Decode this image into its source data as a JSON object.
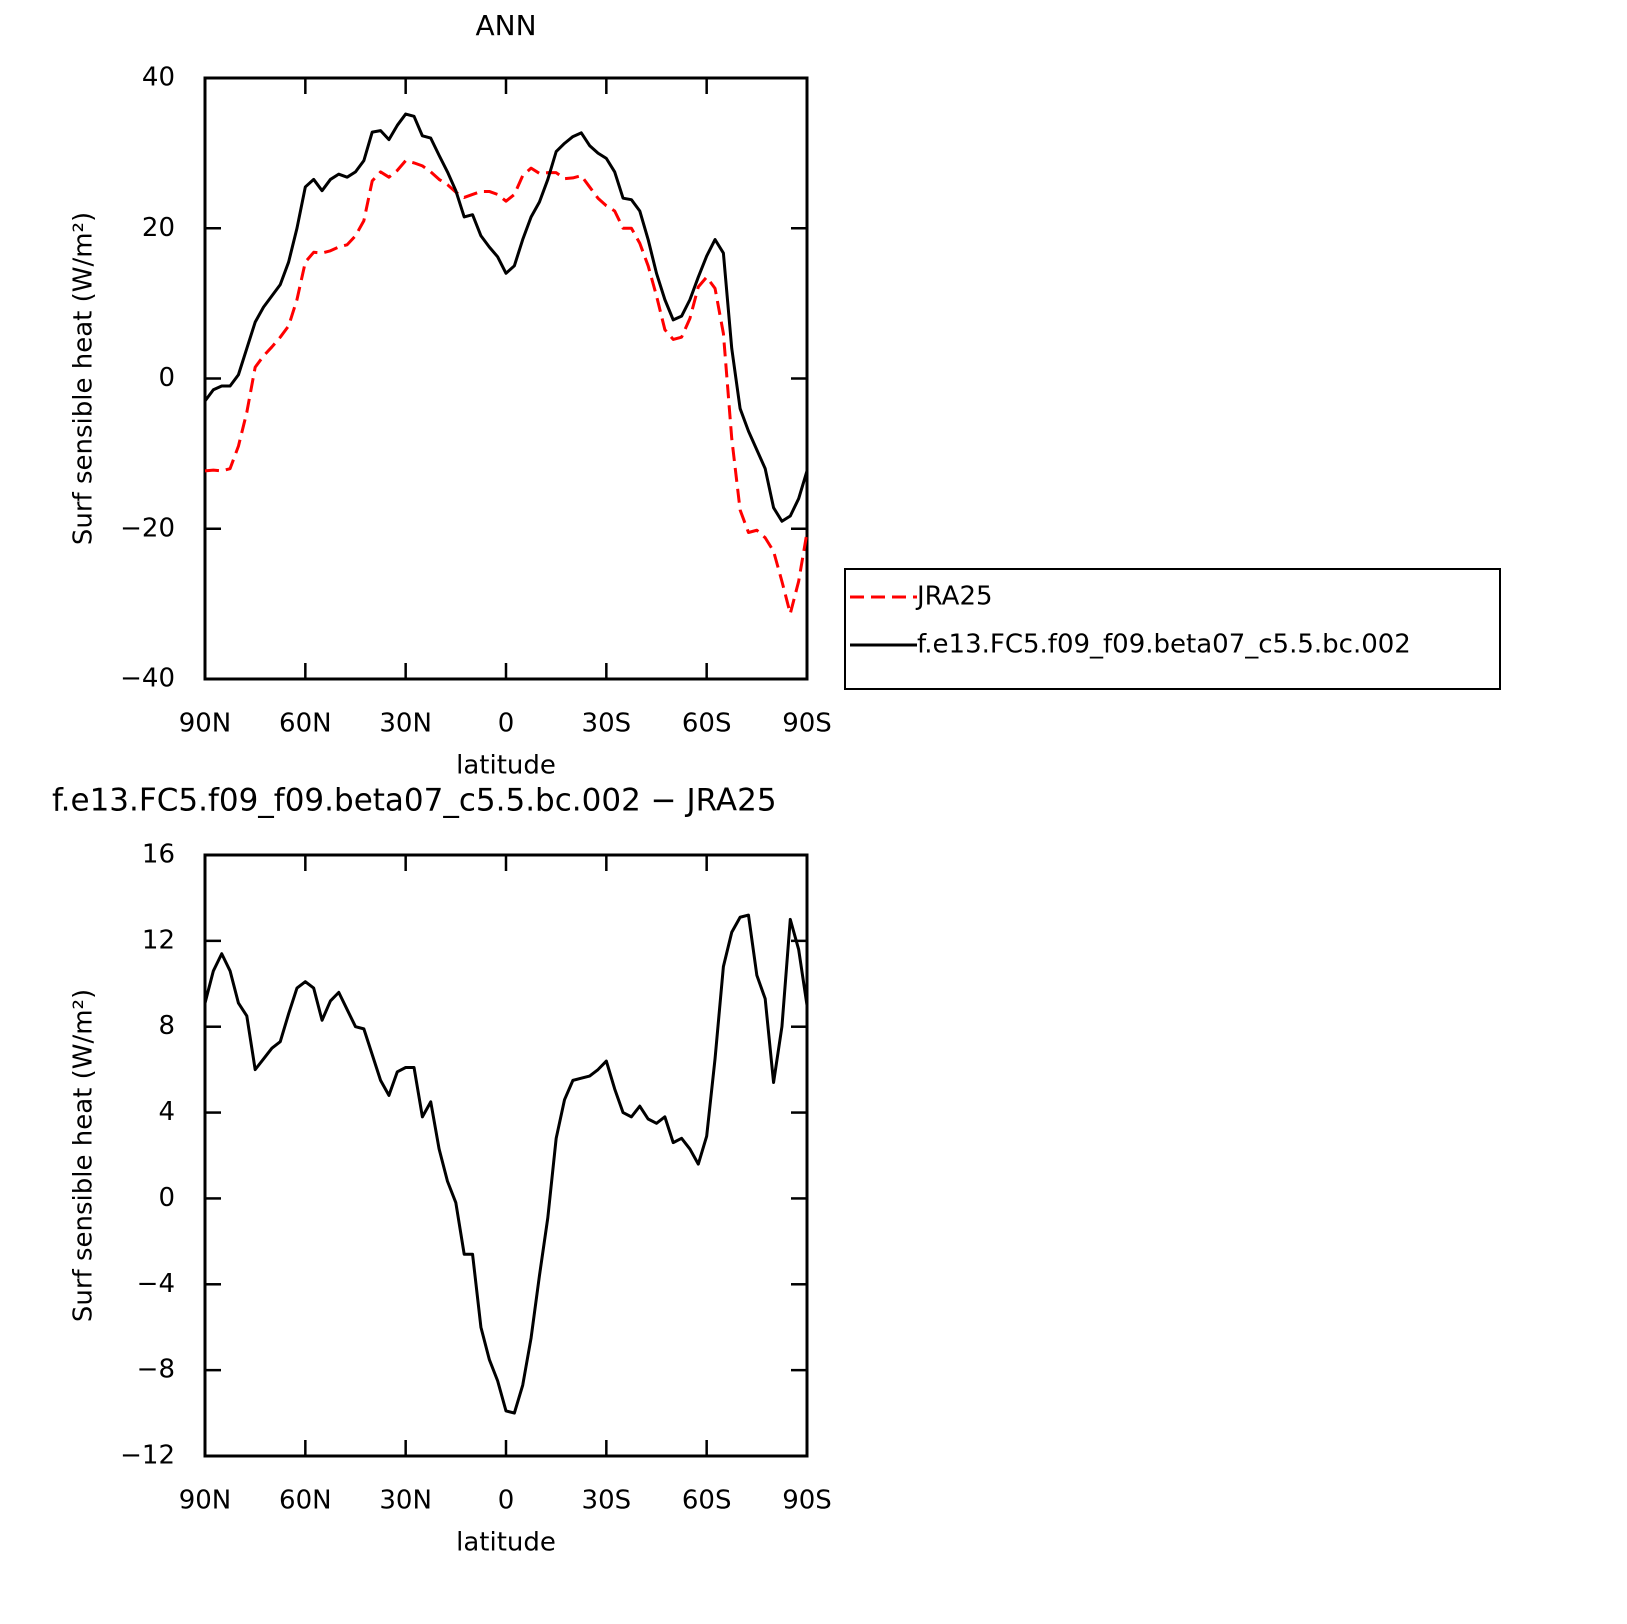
{
  "chart_data": [
    {
      "type": "line",
      "title": "ANN",
      "xlabel": "latitude",
      "ylabel": "Surf sensible heat (W/m²)",
      "x": [
        90,
        87.5,
        85,
        82.5,
        80,
        77.5,
        75,
        72.5,
        70,
        67.5,
        65,
        62.5,
        60,
        57.5,
        55,
        52.5,
        50,
        47.5,
        45,
        42.5,
        40,
        37.5,
        35,
        32.5,
        30,
        27.5,
        25,
        22.5,
        20,
        17.5,
        15,
        12.5,
        10,
        7.5,
        5,
        2.5,
        0,
        -2.5,
        -5,
        -7.5,
        -10,
        -12.5,
        -15,
        -17.5,
        -20,
        -22.5,
        -25,
        -27.5,
        -30,
        -32.5,
        -35,
        -37.5,
        -40,
        -42.5,
        -45,
        -47.5,
        -50,
        -52.5,
        -55,
        -57.5,
        -60,
        -62.5,
        -65,
        -67.5,
        -70,
        -72.5,
        -75,
        -77.5,
        -80,
        -82.5,
        -85,
        -87.5,
        -90
      ],
      "series": [
        {
          "name": "JRA25",
          "color": "#ff0000",
          "style": "dashed",
          "values": [
            -12.3,
            -12.2,
            -12.3,
            -12,
            -9,
            -4.5,
            1.5,
            3,
            4.2,
            5.5,
            7,
            10.5,
            15.5,
            16.8,
            16.7,
            17,
            17.5,
            17.8,
            19,
            21,
            26.3,
            27.5,
            26.8,
            27.7,
            29,
            28.7,
            28.3,
            27.5,
            26.5,
            25.8,
            24.8,
            24.1,
            24.5,
            24.9,
            24.9,
            24.5,
            23.6,
            24.5,
            27,
            28,
            27.3,
            27.4,
            27.4,
            26.6,
            26.7,
            27,
            25.5,
            24,
            23,
            22.3,
            20,
            20,
            18,
            15,
            11,
            6.5,
            5.2,
            5.5,
            8,
            12.2,
            13.5,
            12,
            6,
            -8,
            -17.5,
            -20.5,
            -20.2,
            -21.2,
            -23,
            -27,
            -31.3,
            -27,
            -20.5
          ]
        },
        {
          "name": "f.e13.FC5.f09_f09.beta07_c5.5.bc.002",
          "color": "#000000",
          "style": "solid",
          "values": [
            -3,
            -1.5,
            -1,
            -1,
            0.5,
            4,
            7.5,
            9.5,
            11,
            12.5,
            15.5,
            20,
            25.5,
            26.5,
            25,
            26.5,
            27.2,
            26.8,
            27.5,
            29,
            32.8,
            33,
            31.8,
            33.7,
            35.2,
            34.9,
            32.3,
            32,
            29.7,
            27.5,
            25,
            21.5,
            21.8,
            19,
            17.5,
            16.2,
            14,
            15,
            18.5,
            21.5,
            23.5,
            26.5,
            30.2,
            31.3,
            32.2,
            32.7,
            31,
            30,
            29.3,
            27.5,
            24,
            23.8,
            22.3,
            18.5,
            14,
            10.5,
            7.8,
            8.3,
            10.5,
            13.5,
            16.3,
            18.5,
            16.7,
            4,
            -4,
            -7,
            -9.5,
            -12,
            -17.2,
            -19,
            -18.3,
            -16,
            -12.3
          ]
        }
      ],
      "xlim": [
        90,
        -90
      ],
      "xticks": [
        {
          "value": 90,
          "label": "90N"
        },
        {
          "value": 60,
          "label": "60N"
        },
        {
          "value": 30,
          "label": "30N"
        },
        0,
        {
          "value": -30,
          "label": "30S"
        },
        {
          "value": -60,
          "label": "60S"
        },
        {
          "value": -90,
          "label": "90S"
        }
      ],
      "ylim": [
        -40,
        40
      ],
      "yticks": [
        {
          "value": -40,
          "label": "−40"
        },
        {
          "value": -20,
          "label": "−20"
        },
        0,
        20,
        40
      ],
      "legend": "right"
    },
    {
      "type": "line",
      "title": "f.e13.FC5.f09_f09.beta07_c5.5.bc.002 − JRA25",
      "xlabel": "latitude",
      "ylabel": "Surf sensible heat (W/m²)",
      "x": [
        90,
        87.5,
        85,
        82.5,
        80,
        77.5,
        75,
        72.5,
        70,
        67.5,
        65,
        62.5,
        60,
        57.5,
        55,
        52.5,
        50,
        47.5,
        45,
        42.5,
        40,
        37.5,
        35,
        32.5,
        30,
        27.5,
        25,
        22.5,
        20,
        17.5,
        15,
        12.5,
        10,
        7.5,
        5,
        2.5,
        0,
        -2.5,
        -5,
        -7.5,
        -10,
        -12.5,
        -15,
        -17.5,
        -20,
        -22.5,
        -25,
        -27.5,
        -30,
        -32.5,
        -35,
        -37.5,
        -40,
        -42.5,
        -45,
        -47.5,
        -50,
        -52.5,
        -55,
        -57.5,
        -60,
        -62.5,
        -65,
        -67.5,
        -70,
        -72.5,
        -75,
        -77.5,
        -80,
        -82.5,
        -85,
        -87.5,
        -90
      ],
      "series": [
        {
          "color": "#000000",
          "style": "solid",
          "values": [
            9.1,
            10.6,
            11.4,
            10.6,
            9.1,
            8.5,
            6,
            6.5,
            7,
            7.3,
            8.6,
            9.8,
            10.1,
            9.8,
            8.3,
            9.2,
            9.6,
            8.8,
            8,
            7.9,
            6.7,
            5.5,
            4.8,
            5.9,
            6.1,
            6.1,
            3.8,
            4.5,
            2.3,
            0.8,
            -0.2,
            -2.6,
            -2.6,
            -6,
            -7.5,
            -8.5,
            -9.9,
            -10,
            -8.7,
            -6.5,
            -3.6,
            -0.9,
            2.8,
            4.6,
            5.5,
            5.6,
            5.7,
            6,
            6.4,
            5.1,
            4,
            3.8,
            4.3,
            3.7,
            3.5,
            3.8,
            2.6,
            2.8,
            2.3,
            1.6,
            2.9,
            6.5,
            10.8,
            12.4,
            13.1,
            13.2,
            10.4,
            9.3,
            5.4,
            8,
            13,
            11.6,
            9
          ]
        }
      ],
      "xlim": [
        90,
        -90
      ],
      "xticks": [
        {
          "value": 90,
          "label": "90N"
        },
        {
          "value": 60,
          "label": "60N"
        },
        {
          "value": 30,
          "label": "30N"
        },
        0,
        {
          "value": -30,
          "label": "30S"
        },
        {
          "value": -60,
          "label": "60S"
        },
        {
          "value": -90,
          "label": "90S"
        }
      ],
      "ylim": [
        -12,
        16
      ],
      "yticks": [
        {
          "value": -12,
          "label": "−12"
        },
        {
          "value": -8,
          "label": "−8"
        },
        {
          "value": -4,
          "label": "−4"
        },
        0,
        4,
        8,
        12,
        16
      ]
    }
  ]
}
